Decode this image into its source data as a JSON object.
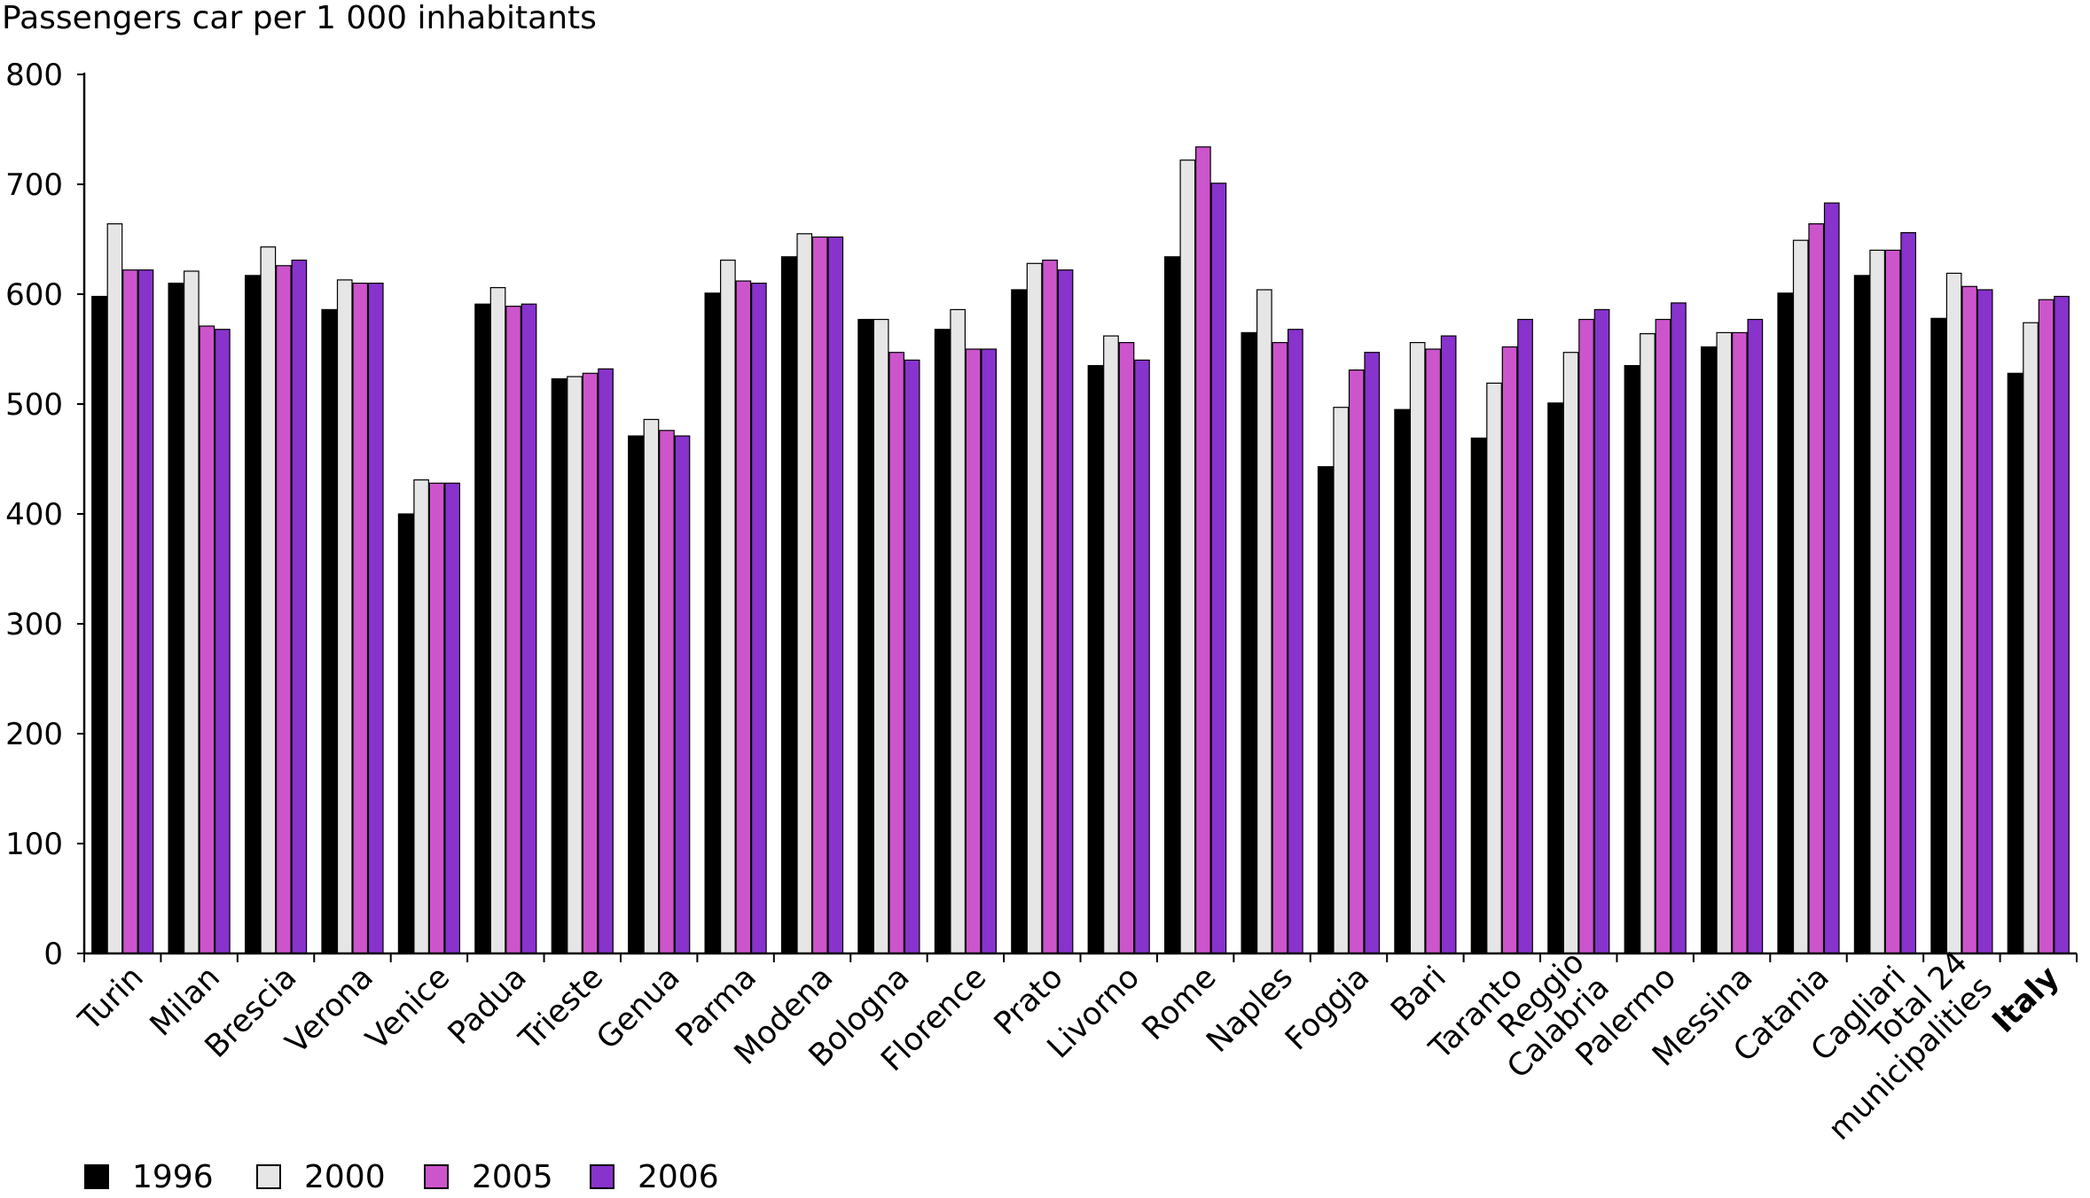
{
  "chart_data": {
    "type": "bar",
    "title": "",
    "ylabel": "Passengers car per 1 000 inhabitants",
    "xlabel": "",
    "ylim": [
      0,
      800
    ],
    "yticks": [
      0,
      100,
      200,
      300,
      400,
      500,
      600,
      700,
      800
    ],
    "grid": false,
    "legend_position": "bottom-left",
    "categories": [
      "Turin",
      "Milan",
      "Brescia",
      "Verona",
      "Venice",
      "Padua",
      "Trieste",
      "Genua",
      "Parma",
      "Modena",
      "Bologna",
      "Florence",
      "Prato",
      "Livorno",
      "Rome",
      "Naples",
      "Foggia",
      "Bari",
      "Taranto",
      "Reggio Calabria",
      "Palermo",
      "Messina",
      "Catania",
      "Cagliari",
      "Total 24 municipalities",
      "Italy"
    ],
    "category_lines": [
      [
        "Turin"
      ],
      [
        "Milan"
      ],
      [
        "Brescia"
      ],
      [
        "Verona"
      ],
      [
        "Venice"
      ],
      [
        "Padua"
      ],
      [
        "Trieste"
      ],
      [
        "Genua"
      ],
      [
        "Parma"
      ],
      [
        "Modena"
      ],
      [
        "Bologna"
      ],
      [
        "Florence"
      ],
      [
        "Prato"
      ],
      [
        "Livorno"
      ],
      [
        "Rome"
      ],
      [
        "Naples"
      ],
      [
        "Foggia"
      ],
      [
        "Bari"
      ],
      [
        "Taranto"
      ],
      [
        "Reggio",
        "Calabria"
      ],
      [
        "Palermo"
      ],
      [
        "Messina"
      ],
      [
        "Catania"
      ],
      [
        "Cagliari"
      ],
      [
        "Total 24",
        "municipalities"
      ],
      [
        "Italy"
      ]
    ],
    "bold_categories": [
      "Italy"
    ],
    "series": [
      {
        "name": "1996",
        "color": "#000000",
        "values": [
          598,
          610,
          617,
          586,
          400,
          591,
          523,
          471,
          601,
          634,
          577,
          568,
          604,
          535,
          634,
          565,
          443,
          495,
          469,
          501,
          535,
          552,
          601,
          617,
          578,
          528
        ]
      },
      {
        "name": "2000",
        "color": "#e6e6e6",
        "values": [
          664,
          621,
          643,
          613,
          431,
          606,
          525,
          486,
          631,
          655,
          577,
          586,
          628,
          562,
          722,
          604,
          497,
          556,
          519,
          547,
          564,
          565,
          649,
          640,
          619,
          574
        ]
      },
      {
        "name": "2005",
        "color": "#cc55cc",
        "values": [
          622,
          571,
          626,
          610,
          428,
          589,
          528,
          476,
          612,
          652,
          547,
          550,
          631,
          556,
          734,
          556,
          531,
          550,
          552,
          577,
          577,
          565,
          664,
          640,
          607,
          595
        ]
      },
      {
        "name": "2006",
        "color": "#8833cc",
        "values": [
          622,
          568,
          631,
          610,
          428,
          591,
          532,
          471,
          610,
          652,
          540,
          550,
          622,
          540,
          701,
          568,
          547,
          562,
          577,
          586,
          592,
          577,
          683,
          656,
          604,
          598
        ]
      }
    ]
  }
}
